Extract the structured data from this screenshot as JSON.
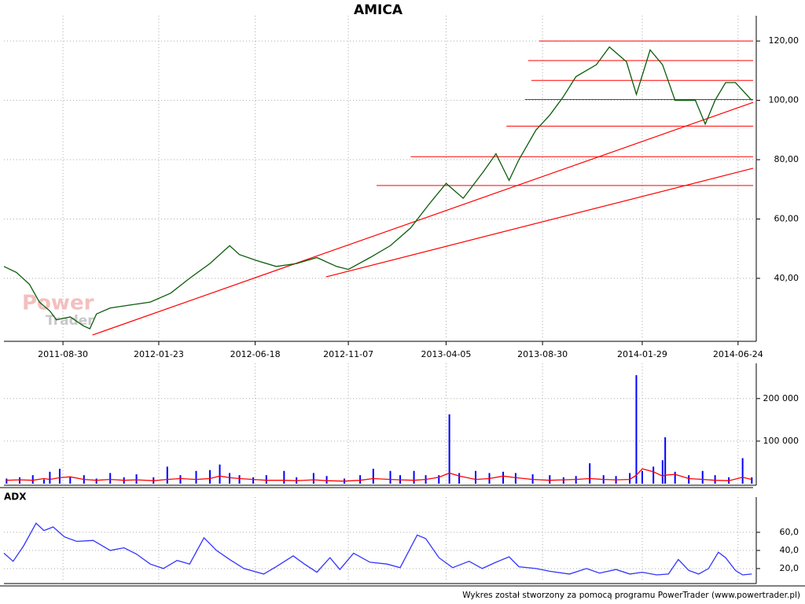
{
  "chart_data": [
    {
      "type": "line",
      "title": "AMICA",
      "watermark": [
        "Power",
        "Trader"
      ],
      "xlim": [
        "2011-06-01",
        "2014-07-17"
      ],
      "ylim": [
        19.3,
        126.4
      ],
      "xticks": [
        "2011-08-30",
        "2012-01-23",
        "2012-06-18",
        "2012-11-07",
        "2013-04-05",
        "2013-08-30",
        "2014-01-29",
        "2014-06-24"
      ],
      "yticks": [
        {
          "value": 40,
          "label": "40,00"
        },
        {
          "value": 60,
          "label": "60,00"
        },
        {
          "value": 80,
          "label": "80,00"
        },
        {
          "value": 100,
          "label": "100,00"
        },
        {
          "value": 120,
          "label": "120,00"
        }
      ],
      "grid": true,
      "x": [
        "2011-06-01",
        "2011-06-20",
        "2011-07-10",
        "2011-07-25",
        "2011-08-10",
        "2011-08-20",
        "2011-09-10",
        "2011-09-30",
        "2011-10-10",
        "2011-10-20",
        "2011-11-10",
        "2011-12-10",
        "2012-01-10",
        "2012-02-10",
        "2012-03-10",
        "2012-04-10",
        "2012-05-10",
        "2012-05-25",
        "2012-06-20",
        "2012-07-20",
        "2012-08-20",
        "2012-09-20",
        "2012-10-20",
        "2012-11-07",
        "2012-12-10",
        "2013-01-10",
        "2013-02-10",
        "2013-03-10",
        "2013-04-05",
        "2013-05-01",
        "2013-06-01",
        "2013-06-20",
        "2013-07-10",
        "2013-07-25",
        "2013-08-20",
        "2013-09-10",
        "2013-09-30",
        "2013-10-20",
        "2013-11-20",
        "2013-12-10",
        "2014-01-05",
        "2014-01-20",
        "2014-02-10",
        "2014-03-01",
        "2014-03-20",
        "2014-04-20",
        "2014-05-05",
        "2014-05-20",
        "2014-06-05",
        "2014-06-20",
        "2014-07-15"
      ],
      "series": [
        {
          "color": "#0b5d0b",
          "values": [
            44,
            42,
            38,
            32,
            29,
            26,
            27,
            24,
            23,
            28,
            30,
            31,
            32,
            35,
            40,
            45,
            51,
            48,
            46,
            44,
            45,
            47,
            44,
            43,
            47,
            51,
            57,
            65,
            72,
            67,
            76,
            82,
            73,
            80,
            90,
            95,
            101,
            108,
            112,
            118,
            113,
            102,
            117,
            112,
            100,
            100,
            92,
            100,
            106,
            106,
            100
          ]
        }
      ],
      "hlines": {
        "color": "#ff0000",
        "values": [
          120,
          113.4,
          106.7,
          100.3,
          91.3,
          81,
          71.3
        ],
        "x0": [
          "2013-08-25",
          "2013-08-08",
          "2013-08-13",
          "2013-08-03",
          "2013-07-06",
          "2013-02-10",
          "2012-12-20"
        ]
      },
      "trendlines": {
        "color": "#ff0000",
        "lines": [
          {
            "x": [
              "2011-10-14",
              "2014-07-17"
            ],
            "values": [
              20.9,
              99.3
            ]
          },
          {
            "x": [
              "2012-10-04",
              "2014-07-17"
            ],
            "values": [
              40.5,
              77.1
            ]
          }
        ]
      }
    },
    {
      "type": "bar",
      "xlim": [
        "2011-06-01",
        "2014-07-17"
      ],
      "ylim": [
        0,
        268000
      ],
      "yticks": [
        {
          "value": 100000,
          "label": "100 000"
        },
        {
          "value": 200000,
          "label": "200 000"
        }
      ],
      "grid": true,
      "x": [
        "2011-06-05",
        "2011-06-25",
        "2011-07-15",
        "2011-08-01",
        "2011-08-10",
        "2011-08-25",
        "2011-09-10",
        "2011-10-01",
        "2011-10-20",
        "2011-11-10",
        "2011-12-01",
        "2011-12-20",
        "2012-01-15",
        "2012-02-05",
        "2012-02-25",
        "2012-03-20",
        "2012-04-10",
        "2012-04-25",
        "2012-05-10",
        "2012-05-25",
        "2012-06-15",
        "2012-07-05",
        "2012-08-01",
        "2012-08-20",
        "2012-09-15",
        "2012-10-05",
        "2012-11-01",
        "2012-11-25",
        "2012-12-15",
        "2013-01-10",
        "2013-01-25",
        "2013-02-15",
        "2013-03-05",
        "2013-03-25",
        "2013-04-10",
        "2013-04-25",
        "2013-05-20",
        "2013-06-10",
        "2013-07-01",
        "2013-07-20",
        "2013-08-15",
        "2013-09-10",
        "2013-10-01",
        "2013-10-20",
        "2013-11-10",
        "2013-12-01",
        "2013-12-20",
        "2014-01-10",
        "2014-01-20",
        "2014-01-29",
        "2014-02-15",
        "2014-03-01",
        "2014-03-05",
        "2014-03-20",
        "2014-04-10",
        "2014-05-01",
        "2014-05-20",
        "2014-06-10",
        "2014-07-01",
        "2014-07-15"
      ],
      "series": [
        {
          "color": "#0000ff",
          "values": [
            12000,
            15000,
            20000,
            10000,
            28000,
            35000,
            15000,
            20000,
            12000,
            25000,
            15000,
            22000,
            15000,
            40000,
            20000,
            30000,
            32000,
            45000,
            25000,
            20000,
            15000,
            20000,
            30000,
            15000,
            25000,
            18000,
            12000,
            20000,
            35000,
            30000,
            20000,
            30000,
            20000,
            20000,
            163000,
            25000,
            30000,
            25000,
            28000,
            25000,
            22000,
            20000,
            15000,
            18000,
            48000,
            20000,
            18000,
            25000,
            255000,
            30000,
            40000,
            55000,
            109000,
            28000,
            20000,
            30000,
            20000,
            15000,
            60000,
            15000
          ]
        },
        {
          "color": "#ff0000",
          "values": [
            8000,
            9000,
            8000,
            12000,
            10000,
            14000,
            16000,
            10000,
            8000,
            10000,
            8000,
            9000,
            7000,
            10000,
            12000,
            10000,
            12000,
            18000,
            14000,
            12000,
            10000,
            8000,
            8000,
            7000,
            9000,
            7000,
            6000,
            8000,
            12000,
            10000,
            9000,
            8000,
            10000,
            15000,
            25000,
            18000,
            10000,
            12000,
            18000,
            14000,
            10000,
            8000,
            9000,
            10000,
            12000,
            10000,
            9000,
            10000,
            20000,
            35000,
            28000,
            18000,
            20000,
            22000,
            12000,
            10000,
            8000,
            7000,
            15000,
            10000
          ]
        }
      ]
    },
    {
      "type": "line",
      "title": "ADX",
      "xlim": [
        "2011-06-01",
        "2014-07-17"
      ],
      "ylim": [
        5.2,
        92
      ],
      "yticks": [
        {
          "value": 20,
          "label": "20,0"
        },
        {
          "value": 40,
          "label": "40,0"
        },
        {
          "value": 60,
          "label": "60,0"
        }
      ],
      "grid": true,
      "x": [
        "2011-06-01",
        "2011-06-15",
        "2011-07-01",
        "2011-07-20",
        "2011-08-01",
        "2011-08-15",
        "2011-09-01",
        "2011-09-20",
        "2011-10-15",
        "2011-11-10",
        "2011-12-01",
        "2011-12-20",
        "2012-01-10",
        "2012-01-30",
        "2012-02-20",
        "2012-03-10",
        "2012-04-01",
        "2012-04-20",
        "2012-05-10",
        "2012-06-01",
        "2012-07-01",
        "2012-07-20",
        "2012-08-15",
        "2012-09-01",
        "2012-09-20",
        "2012-10-10",
        "2012-10-25",
        "2012-11-15",
        "2012-12-10",
        "2013-01-05",
        "2013-01-25",
        "2013-02-20",
        "2013-03-05",
        "2013-03-25",
        "2013-04-15",
        "2013-05-10",
        "2013-05-30",
        "2013-06-20",
        "2013-07-10",
        "2013-07-25",
        "2013-08-20",
        "2013-09-10",
        "2013-10-10",
        "2013-11-05",
        "2013-11-25",
        "2013-12-20",
        "2014-01-10",
        "2014-01-29",
        "2014-02-20",
        "2014-03-10",
        "2014-03-25",
        "2014-04-10",
        "2014-04-25",
        "2014-05-10",
        "2014-05-25",
        "2014-06-05",
        "2014-06-20",
        "2014-07-01",
        "2014-07-15"
      ],
      "series": [
        {
          "color": "#3333ff",
          "values": [
            37,
            28,
            45,
            70,
            62,
            66,
            55,
            50,
            51,
            40,
            43,
            36,
            25,
            20,
            29,
            25,
            54,
            40,
            30,
            20,
            14,
            22,
            34,
            25,
            16,
            32,
            19,
            37,
            27,
            25,
            21,
            57,
            53,
            32,
            21,
            28,
            20,
            27,
            33,
            22,
            20,
            17,
            14,
            20,
            15,
            19,
            14,
            16,
            13,
            14,
            30,
            18,
            14,
            20,
            38,
            32,
            18,
            13,
            14
          ]
        }
      ]
    }
  ],
  "footer": "Wykres został stworzony za pomocą programu PowerTrader (www.powertrader.pl)"
}
